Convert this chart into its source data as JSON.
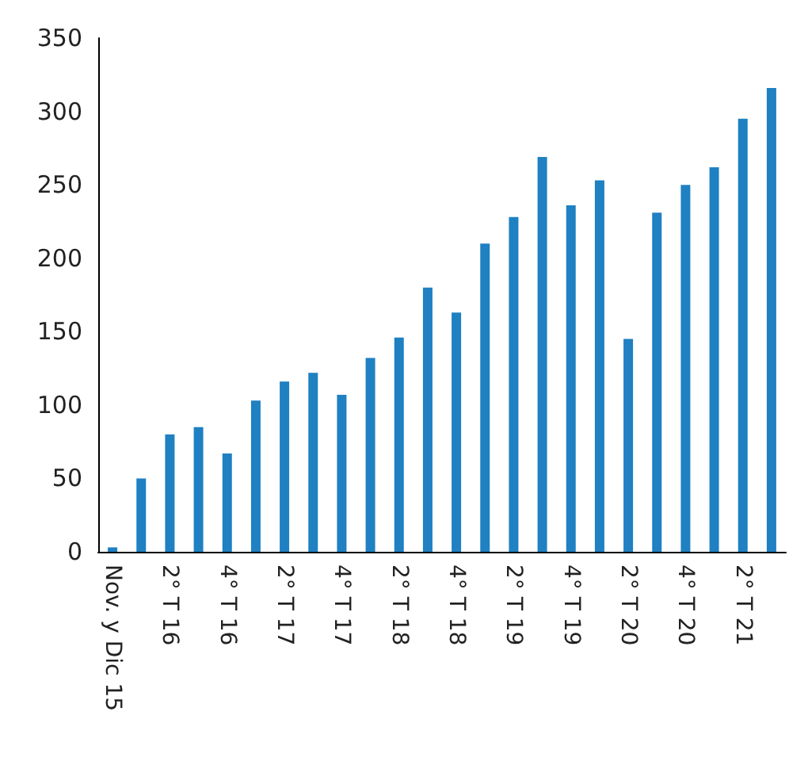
{
  "chart_data": {
    "type": "bar",
    "categories": [
      "Nov. y Dic 15",
      null,
      "2° T 16",
      null,
      "4° T 16",
      null,
      "2° T 17",
      null,
      "4° T 17",
      null,
      "2° T 18",
      null,
      "4° T 18",
      null,
      "2° T 19",
      null,
      "4° T 19",
      null,
      "2° T 20",
      null,
      "4° T 20",
      null,
      "2° T 21",
      null
    ],
    "values": [
      3,
      50,
      80,
      85,
      67,
      103,
      116,
      122,
      107,
      132,
      146,
      180,
      163,
      210,
      228,
      269,
      236,
      253,
      145,
      231,
      250,
      262,
      295,
      316
    ],
    "color": "#1f80c2",
    "ylim": [
      0,
      350
    ],
    "yticks": [
      0,
      50,
      100,
      150,
      200,
      250,
      300,
      350
    ],
    "grid": false
  }
}
